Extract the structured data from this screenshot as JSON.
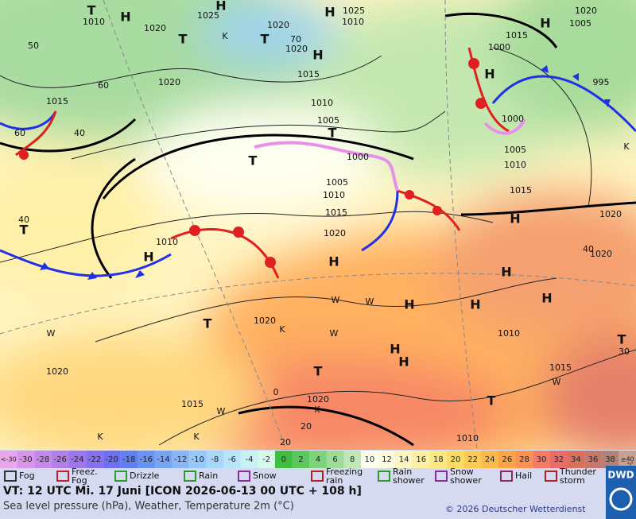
{
  "map": {
    "labels": [
      "T",
      "1010",
      "H",
      "1020",
      "1025",
      "H",
      "1020",
      "K",
      "T",
      "70",
      "1020",
      "H",
      "H",
      "1025",
      "1010",
      "1015",
      "H",
      "1020",
      "1005",
      "1000",
      "H",
      "995",
      "1000",
      "1005",
      "1010",
      "1015",
      "H",
      "1020",
      "1015",
      "1010",
      "1005",
      "T",
      "1015",
      "40",
      "60",
      "50",
      "60",
      "T",
      "T",
      "1000",
      "1005",
      "1010",
      "1015",
      "1020",
      "H",
      "K",
      "1020",
      "40",
      "T",
      "1010",
      "H",
      "40",
      "1020",
      "H",
      "H",
      "W",
      "W",
      "H",
      "H",
      "T",
      "K",
      "1020",
      "1010",
      "T",
      "30",
      "W",
      "W",
      "H",
      "H",
      "1020",
      "T",
      "1015",
      "W",
      "0",
      "1020",
      "1015",
      "K",
      "W",
      "T",
      "20",
      "K",
      "K",
      "1010",
      "20"
    ]
  },
  "scale": {
    "labels": [
      "<-30",
      -30,
      -28,
      -26,
      -24,
      -22,
      -20,
      -18,
      -16,
      -14,
      -12,
      -10,
      -8,
      -6,
      -4,
      -2,
      0,
      2,
      4,
      6,
      8,
      10,
      12,
      14,
      16,
      18,
      20,
      22,
      24,
      26,
      28,
      30,
      32,
      34,
      36,
      38,
      "≥40"
    ],
    "colors": [
      "#e9a6ea",
      "#d896ea",
      "#c58ae8",
      "#b27fe8",
      "#9d76ea",
      "#8770ec",
      "#6f70f0",
      "#627ff0",
      "#6a92f2",
      "#78a4f4",
      "#88b6f6",
      "#98c8f8",
      "#a8d8f8",
      "#b8e6f8",
      "#c8f2f6",
      "#d6faec",
      "#3fbf3f",
      "#5cc75c",
      "#7dd27b",
      "#9edc98",
      "#c0e8b4",
      "#fffff0",
      "#fffbe0",
      "#fff5c2",
      "#fff0a2",
      "#ffe882",
      "#ffdb62",
      "#ffcb52",
      "#ffb84a",
      "#ffa444",
      "#ff9150",
      "#f77a66",
      "#e96c68",
      "#d9705e",
      "#c87868",
      "#b38274",
      "#c8a08e"
    ],
    "unit": "°C"
  },
  "legend": {
    "items": [
      "Fog",
      "Freez.\nFog",
      "Drizzle",
      "Rain",
      "Snow",
      "Freezing\nrain",
      "Rain\nshower",
      "Snow\nshower",
      "Hail",
      "Thunder\nstorm"
    ]
  },
  "footer": {
    "valid_time": "VT: 12 UTC Mi.  17 Juni [ICON 2026-06-13  00 UTC + 108 h]",
    "description": "Sea level pressure (hPa), Weather, Temperature 2m (°C)",
    "copyright": "© 2026 Deutscher Wetterdienst",
    "logo": "DWD"
  }
}
